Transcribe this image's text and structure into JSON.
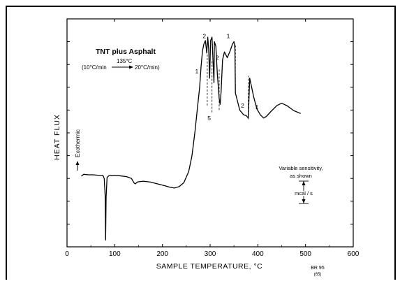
{
  "chart_data": {
    "type": "line",
    "title": "TNT plus Asphalt",
    "subtitle_left": "(10°C/min",
    "subtitle_temp": "135°C",
    "subtitle_right": "20°C/min)",
    "xlabel": "SAMPLE TEMPERATURE, °C",
    "ylabel": "HEAT FLUX",
    "exotherm_label": "Exothermic",
    "sensitivity_note_line1": "Variable sensitivity,",
    "sensitivity_note_line2": "as shown",
    "scale_bar_label": "mcal / s",
    "xticks": [
      0,
      100,
      200,
      300,
      400,
      500,
      600
    ],
    "xlim": [
      0,
      600
    ],
    "ylim": [
      0,
      10
    ],
    "annotations": [
      {
        "text": "1",
        "x": 272,
        "y": 7.6
      },
      {
        "text": "2",
        "x": 288,
        "y": 9.15
      },
      {
        "text": "2",
        "x": 315,
        "y": 8.2
      },
      {
        "text": "1",
        "x": 338,
        "y": 9.15
      },
      {
        "text": "5",
        "x": 298,
        "y": 5.55
      },
      {
        "text": "2",
        "x": 368,
        "y": 6.1
      },
      {
        "text": "1",
        "x": 398,
        "y": 6.05
      }
    ],
    "figure_id": "BR 95",
    "figure_id_sub": "(65)",
    "series": [
      {
        "values": [
          [
            30,
            3.1
          ],
          [
            35,
            3.18
          ],
          [
            45,
            3.16
          ],
          [
            55,
            3.16
          ],
          [
            65,
            3.14
          ],
          [
            75,
            3.14
          ],
          [
            78,
            3.0
          ],
          [
            80,
            2.2
          ],
          [
            81,
            0.3
          ],
          [
            82,
            2.2
          ],
          [
            84,
            3.05
          ],
          [
            88,
            3.12
          ],
          [
            100,
            3.14
          ],
          [
            110,
            3.12
          ],
          [
            125,
            3.08
          ],
          [
            135,
            3.0
          ],
          [
            140,
            2.82
          ],
          [
            143,
            2.76
          ],
          [
            148,
            2.85
          ],
          [
            160,
            2.88
          ],
          [
            175,
            2.84
          ],
          [
            190,
            2.76
          ],
          [
            205,
            2.68
          ],
          [
            215,
            2.62
          ],
          [
            225,
            2.58
          ],
          [
            235,
            2.64
          ],
          [
            245,
            2.82
          ],
          [
            255,
            3.3
          ],
          [
            262,
            4.0
          ],
          [
            268,
            5.0
          ],
          [
            274,
            6.2
          ],
          [
            278,
            7.0
          ],
          [
            281,
            7.9
          ],
          [
            284,
            8.6
          ],
          [
            287,
            8.9
          ],
          [
            290,
            9.05
          ],
          [
            293,
            8.5
          ],
          [
            295,
            9.2
          ],
          [
            297,
            8.7
          ],
          [
            299,
            7.4
          ],
          [
            301,
            9.05
          ],
          [
            304,
            9.2
          ],
          [
            306,
            8.2
          ],
          [
            308,
            7.2
          ],
          [
            309,
            9.0
          ],
          [
            312,
            8.8
          ],
          [
            315,
            7.6
          ],
          [
            319,
            6.5
          ],
          [
            321,
            6.25
          ],
          [
            323,
            6.8
          ],
          [
            326,
            8.2
          ],
          [
            330,
            8.55
          ],
          [
            336,
            8.3
          ],
          [
            342,
            8.6
          ],
          [
            347,
            8.9
          ],
          [
            350,
            9.0
          ],
          [
            352,
            8.7
          ],
          [
            353,
            6.75
          ],
          [
            356,
            6.5
          ],
          [
            362,
            6.0
          ],
          [
            370,
            5.8
          ],
          [
            376,
            5.75
          ],
          [
            380,
            5.65
          ],
          [
            383,
            7.4
          ],
          [
            386,
            7.1
          ],
          [
            391,
            6.6
          ],
          [
            398,
            6.05
          ],
          [
            405,
            5.8
          ],
          [
            412,
            5.65
          ],
          [
            418,
            5.72
          ],
          [
            428,
            5.95
          ],
          [
            440,
            6.2
          ],
          [
            450,
            6.3
          ],
          [
            462,
            6.18
          ],
          [
            475,
            5.98
          ],
          [
            490,
            5.85
          ]
        ]
      }
    ],
    "dashed_segments": [
      [
        [
          294,
          6.2
        ],
        [
          294,
          8.5
        ]
      ],
      [
        [
          304,
          5.9
        ],
        [
          304,
          8.2
        ]
      ],
      [
        [
          319,
          6.0
        ],
        [
          319,
          7.8
        ]
      ],
      [
        [
          353,
          6.75
        ],
        [
          353,
          8.9
        ]
      ],
      [
        [
          380,
          5.6
        ],
        [
          380,
          7.5
        ]
      ]
    ]
  }
}
